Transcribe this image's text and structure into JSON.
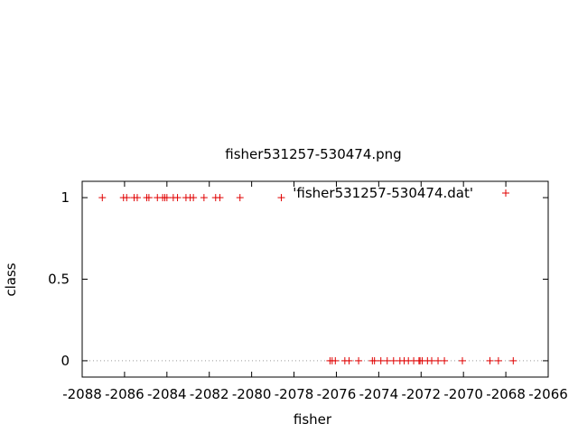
{
  "chart_data": {
    "type": "scatter",
    "title": "fisher531257-530474.png",
    "xlabel": "fisher",
    "ylabel": "class",
    "xlim": [
      -2088,
      -2066
    ],
    "ylim": [
      -0.1,
      1.1
    ],
    "x_ticks": [
      -2088,
      -2086,
      -2084,
      -2082,
      -2080,
      -2078,
      -2076,
      -2074,
      -2072,
      -2070,
      -2068,
      -2066
    ],
    "x_tick_labels": [
      "-2088",
      "-2086",
      "-2084",
      "-2082",
      "-2080",
      "-2078",
      "-2076",
      "-2074",
      "-2072",
      "-2070",
      "-2068",
      "-2066"
    ],
    "y_ticks": [
      0,
      0.5,
      1
    ],
    "y_tick_labels": [
      "0",
      "0.5",
      "1"
    ],
    "zero_line": true,
    "marker": "+",
    "color": "#e00000",
    "series": [
      {
        "name": "'fisher531257-530474.dat'",
        "points": [
          [
            -2087.05,
            1
          ],
          [
            -2086.05,
            1
          ],
          [
            -2085.9,
            1
          ],
          [
            -2085.55,
            1
          ],
          [
            -2085.4,
            1
          ],
          [
            -2084.95,
            1
          ],
          [
            -2084.85,
            1
          ],
          [
            -2084.45,
            1
          ],
          [
            -2084.2,
            1
          ],
          [
            -2084.1,
            1
          ],
          [
            -2084.0,
            1
          ],
          [
            -2083.7,
            1
          ],
          [
            -2083.5,
            1
          ],
          [
            -2083.1,
            1
          ],
          [
            -2082.9,
            1
          ],
          [
            -2082.75,
            1
          ],
          [
            -2082.25,
            1
          ],
          [
            -2081.7,
            1
          ],
          [
            -2081.5,
            1
          ],
          [
            -2080.55,
            1
          ],
          [
            -2078.6,
            1
          ],
          [
            -2076.3,
            0
          ],
          [
            -2076.2,
            0
          ],
          [
            -2076.05,
            0
          ],
          [
            -2075.6,
            0
          ],
          [
            -2075.4,
            0
          ],
          [
            -2074.95,
            0
          ],
          [
            -2074.3,
            0
          ],
          [
            -2074.2,
            0
          ],
          [
            -2073.9,
            0
          ],
          [
            -2073.6,
            0
          ],
          [
            -2073.3,
            0
          ],
          [
            -2073.0,
            0
          ],
          [
            -2072.8,
            0
          ],
          [
            -2072.6,
            0
          ],
          [
            -2072.35,
            0
          ],
          [
            -2072.1,
            0
          ],
          [
            -2072.05,
            0
          ],
          [
            -2071.95,
            0
          ],
          [
            -2071.7,
            0
          ],
          [
            -2071.5,
            0
          ],
          [
            -2071.2,
            0
          ],
          [
            -2070.9,
            0
          ],
          [
            -2070.05,
            0
          ],
          [
            -2068.75,
            0
          ],
          [
            -2068.35,
            0
          ],
          [
            -2067.65,
            0
          ]
        ]
      }
    ]
  }
}
